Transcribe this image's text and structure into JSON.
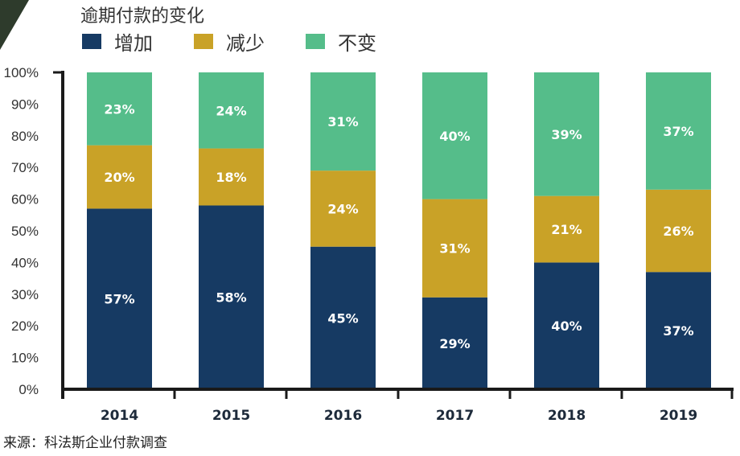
{
  "chart_data": {
    "type": "bar",
    "stacked": true,
    "title": "逾期付款的变化",
    "categories": [
      "2014",
      "2015",
      "2016",
      "2017",
      "2018",
      "2019"
    ],
    "series": [
      {
        "name": "增加",
        "color": "#163a63",
        "values": [
          57,
          58,
          45,
          29,
          40,
          37
        ]
      },
      {
        "name": "减少",
        "color": "#c9a227",
        "values": [
          20,
          18,
          24,
          31,
          21,
          26
        ]
      },
      {
        "name": "不变",
        "color": "#55bd8a",
        "values": [
          23,
          24,
          31,
          40,
          39,
          37
        ]
      }
    ],
    "ylim": [
      0,
      100
    ],
    "yticks": [
      "0%",
      "10%",
      "20%",
      "30%",
      "40%",
      "50%",
      "60%",
      "70%",
      "80%",
      "90%",
      "100%"
    ],
    "grid": false,
    "legend": "top",
    "data_labels": true
  },
  "source": "来源：科法斯企业付款调查"
}
